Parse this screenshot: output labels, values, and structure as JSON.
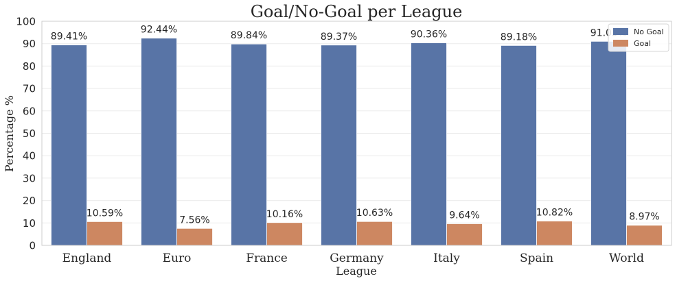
{
  "chart_data": {
    "type": "bar",
    "title": "Goal/No-Goal per League",
    "xlabel": "League",
    "ylabel": "Percentage %",
    "categories": [
      "England",
      "Euro",
      "France",
      "Germany",
      "Italy",
      "Spain",
      "World"
    ],
    "series": [
      {
        "name": "No Goal",
        "color": "#5874a6",
        "values": [
          89.41,
          92.44,
          89.84,
          89.37,
          90.36,
          89.18,
          91.03
        ]
      },
      {
        "name": "Goal",
        "color": "#cd8761",
        "values": [
          10.59,
          7.56,
          10.16,
          10.63,
          9.64,
          10.82,
          8.97
        ]
      }
    ],
    "data_labels": [
      [
        "89.41%",
        "92.44%",
        "89.84%",
        "89.37%",
        "90.36%",
        "89.18%",
        "91.03%"
      ],
      [
        "10.59%",
        "7.56%",
        "10.16%",
        "10.63%",
        "9.64%",
        "10.82%",
        "8.97%"
      ]
    ],
    "ylim": [
      0,
      100
    ],
    "yticks": [
      0,
      10,
      20,
      30,
      40,
      50,
      60,
      70,
      80,
      90,
      100
    ],
    "grid": "horizontal",
    "legend": "top-right"
  }
}
